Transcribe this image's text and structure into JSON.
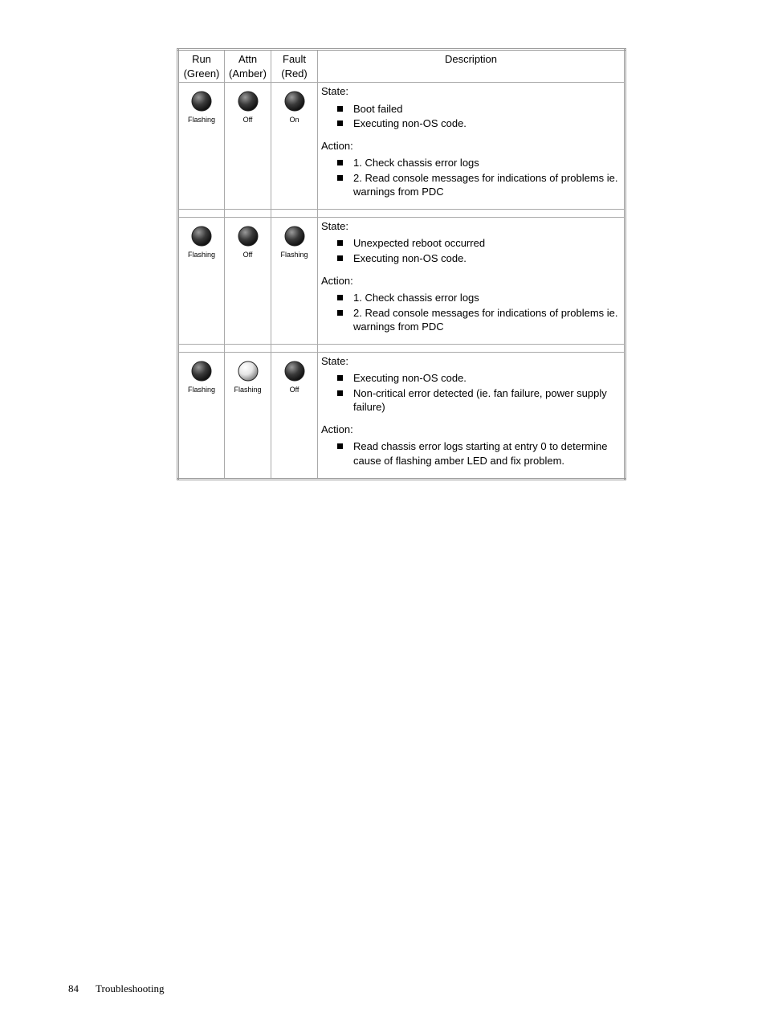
{
  "table": {
    "headers": {
      "run_line1": "Run",
      "run_line2": "(Green)",
      "attn_line1": "Attn",
      "attn_line2": "(Amber)",
      "fault_line1": "Fault",
      "fault_line2": "(Red)",
      "description": "Description"
    },
    "led_styles": {
      "dark": {
        "fill": "#3a3a3a",
        "hi": "#9a9a9a",
        "lo": "#121212"
      },
      "light": {
        "fill": "#e6e6e6",
        "hi": "#ffffff",
        "lo": "#888888"
      }
    },
    "rows": [
      {
        "leds": [
          {
            "style": "dark",
            "caption": "Flashing"
          },
          {
            "style": "dark",
            "caption": "Off"
          },
          {
            "style": "dark",
            "caption": "On"
          }
        ],
        "state_label": "State:",
        "state_items": [
          "Boot failed",
          "Executing non-OS code."
        ],
        "action_label": "Action:",
        "action_items": [
          "1. Check chassis error logs",
          "2. Read console messages for indications of problems ie. warnings from PDC"
        ]
      },
      {
        "leds": [
          {
            "style": "dark",
            "caption": "Flashing"
          },
          {
            "style": "dark",
            "caption": "Off"
          },
          {
            "style": "dark",
            "caption": "Flashing"
          }
        ],
        "state_label": "State:",
        "state_items": [
          "Unexpected reboot occurred",
          "Executing non-OS code."
        ],
        "action_label": "Action:",
        "action_items": [
          "1. Check chassis error logs",
          "2. Read console messages for indications of problems ie. warnings from PDC"
        ]
      },
      {
        "leds": [
          {
            "style": "dark",
            "caption": "Flashing"
          },
          {
            "style": "light",
            "caption": "Flashing"
          },
          {
            "style": "dark",
            "caption": "Off"
          }
        ],
        "state_label": "State:",
        "state_items": [
          "Executing non-OS code.",
          "Non-critical error detected (ie. fan failure, power supply failure)"
        ],
        "action_label": "Action:",
        "action_items": [
          "Read chassis error logs starting at entry 0 to determine cause of flashing amber LED and fix problem."
        ]
      }
    ]
  },
  "footer": {
    "page_number": "84",
    "section": "Troubleshooting"
  }
}
